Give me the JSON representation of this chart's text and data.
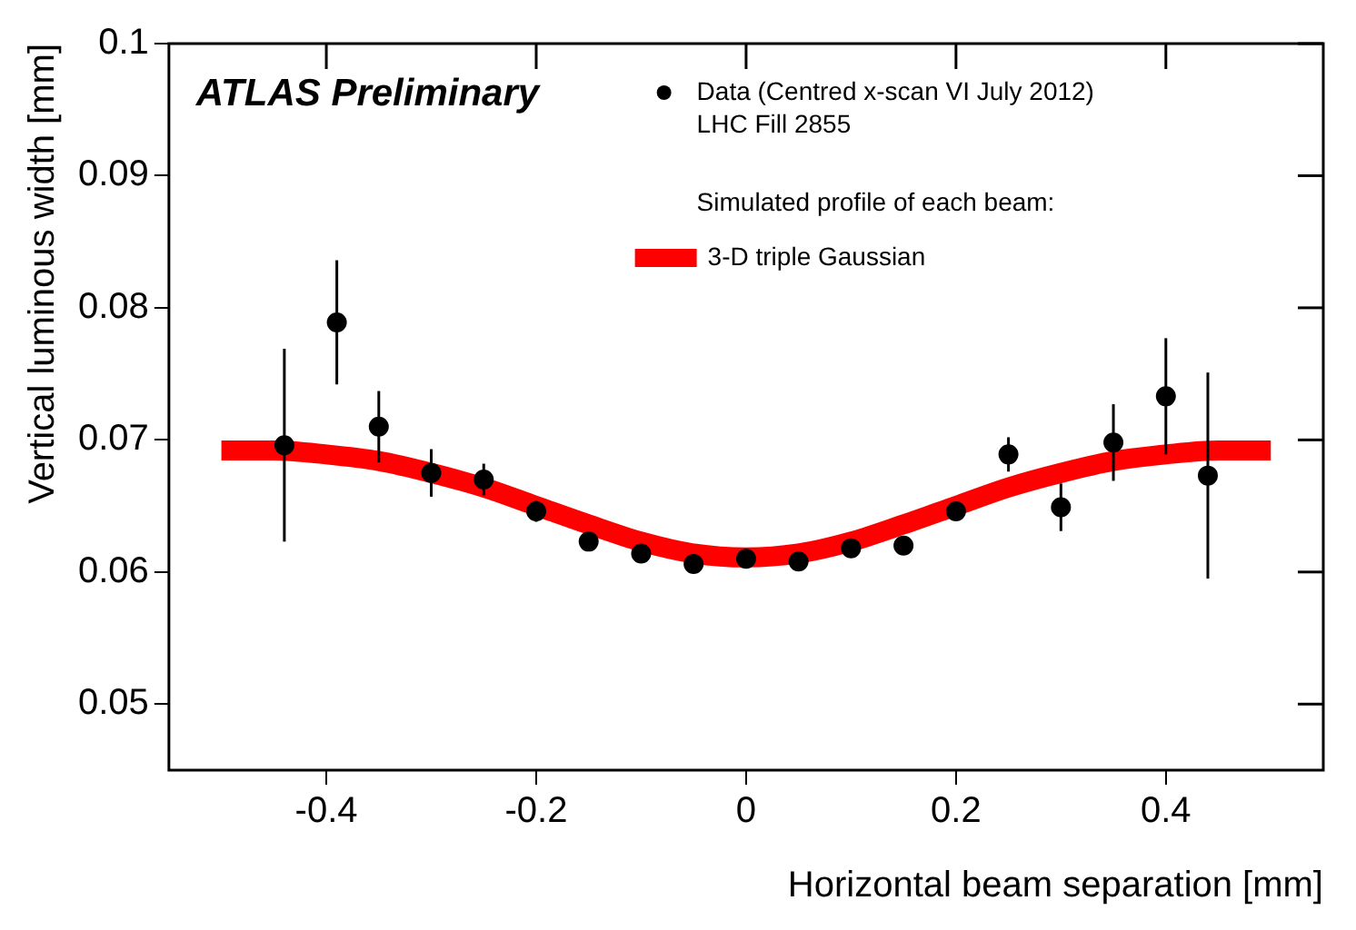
{
  "chart_data": {
    "type": "scatter",
    "xlabel": "Horizontal beam separation [mm]",
    "ylabel": "Vertical luminous width [mm]",
    "annotations": [
      "ATLAS Preliminary",
      "LHC Fill 2855",
      "Simulated profile of each beam:"
    ],
    "series": [
      {
        "name": "Data (Centred x-scan VI July 2012)",
        "type": "scatter",
        "color": "#000000",
        "marker": "circle",
        "x": [
          -0.44,
          -0.39,
          -0.35,
          -0.3,
          -0.25,
          -0.2,
          -0.15,
          -0.1,
          -0.05,
          0,
          0.05,
          0.1,
          0.15,
          0.2,
          0.25,
          0.3,
          0.35,
          0.4,
          0.44
        ],
        "values": [
          0.0696,
          0.0789,
          0.071,
          0.0675,
          0.067,
          0.0646,
          0.0623,
          0.0614,
          0.0606,
          0.061,
          0.0608,
          0.0618,
          0.062,
          0.0646,
          0.0689,
          0.0649,
          0.0698,
          0.0733,
          0.0673
        ],
        "errors": [
          0.0073,
          0.0047,
          0.0027,
          0.0018,
          0.0012,
          0.0008,
          null,
          null,
          null,
          null,
          null,
          null,
          null,
          0.0003,
          0.0013,
          0.0018,
          0.0029,
          0.0044,
          0.0078
        ]
      },
      {
        "name": "3-D triple Gaussian",
        "type": "line",
        "color": "#ff0000",
        "marker": "none",
        "x": [
          -0.5,
          -0.45,
          -0.4,
          -0.35,
          -0.3,
          -0.25,
          -0.2,
          -0.15,
          -0.1,
          -0.05,
          0,
          0.05,
          0.1,
          0.15,
          0.2,
          0.25,
          0.3,
          0.35,
          0.4,
          0.45,
          0.5
        ],
        "values": [
          0.0692,
          0.0692,
          0.0689,
          0.0684,
          0.0675,
          0.0664,
          0.065,
          0.0636,
          0.0623,
          0.0614,
          0.0611,
          0.0614,
          0.0623,
          0.0636,
          0.065,
          0.0664,
          0.0675,
          0.0684,
          0.0689,
          0.0692,
          0.0692
        ]
      }
    ],
    "xlim": [
      -0.55,
      0.55
    ],
    "xticks": [
      -0.4,
      -0.2,
      0,
      0.2,
      0.4
    ],
    "ylim": [
      0.045,
      0.1
    ],
    "yticks": [
      0.05,
      0.06,
      0.07,
      0.08,
      0.09,
      0.1
    ],
    "grid": false,
    "legend": "top right"
  }
}
